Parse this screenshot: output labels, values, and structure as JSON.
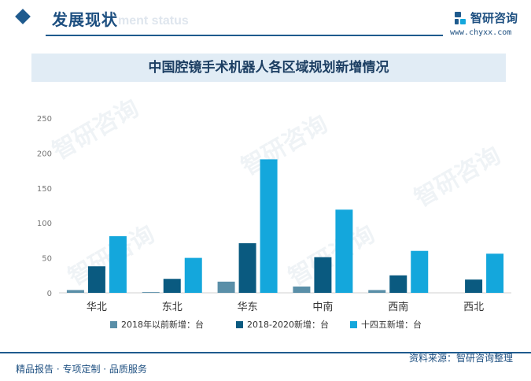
{
  "header": {
    "section_title": "发展现状",
    "section_subtitle": "ment status",
    "brand_name": "智研咨询",
    "brand_url": "www.chyxx.com"
  },
  "colors": {
    "primary": "#1f5b8e",
    "series_before2018": "#5a8fa8",
    "series_2018_2020": "#0a5a80",
    "series_14th": "#14a7dc",
    "title_band": "#e1ecf5"
  },
  "watermark": "智研咨询",
  "chart_data": {
    "type": "bar",
    "title": "中国腔镜手术机器人各区域规划新增情况",
    "categories": [
      "华北",
      "东北",
      "华东",
      "中南",
      "西南",
      "西北"
    ],
    "series": [
      {
        "name": "2018年以前新增：台",
        "values": [
          4,
          1,
          16,
          9,
          4,
          0
        ]
      },
      {
        "name": "2018-2020新增：台",
        "values": [
          38,
          20,
          71,
          51,
          25,
          19
        ]
      },
      {
        "name": "十四五新增：台",
        "values": [
          81,
          50,
          191,
          119,
          60,
          56
        ]
      }
    ],
    "yticks": [
      "0",
      "50",
      "100",
      "150",
      "200",
      "250"
    ],
    "ylim": [
      0,
      250
    ],
    "grid": false,
    "legend_position": "bottom"
  },
  "footer": {
    "left_text": "精品报告 · 专项定制 · 品质服务",
    "source_text": "资料来源：智研咨询整理"
  }
}
